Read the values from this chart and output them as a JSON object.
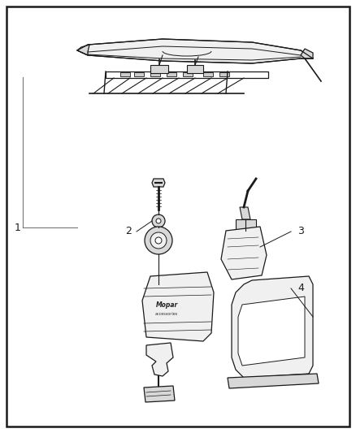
{
  "bg_color": "#ffffff",
  "border_color": "#1a1a1a",
  "line_color": "#1a1a1a",
  "label_color": "#1a1a1a",
  "fill_light": "#f0f0f0",
  "fill_mid": "#d8d8d8",
  "fill_dark": "#b0b0b0"
}
